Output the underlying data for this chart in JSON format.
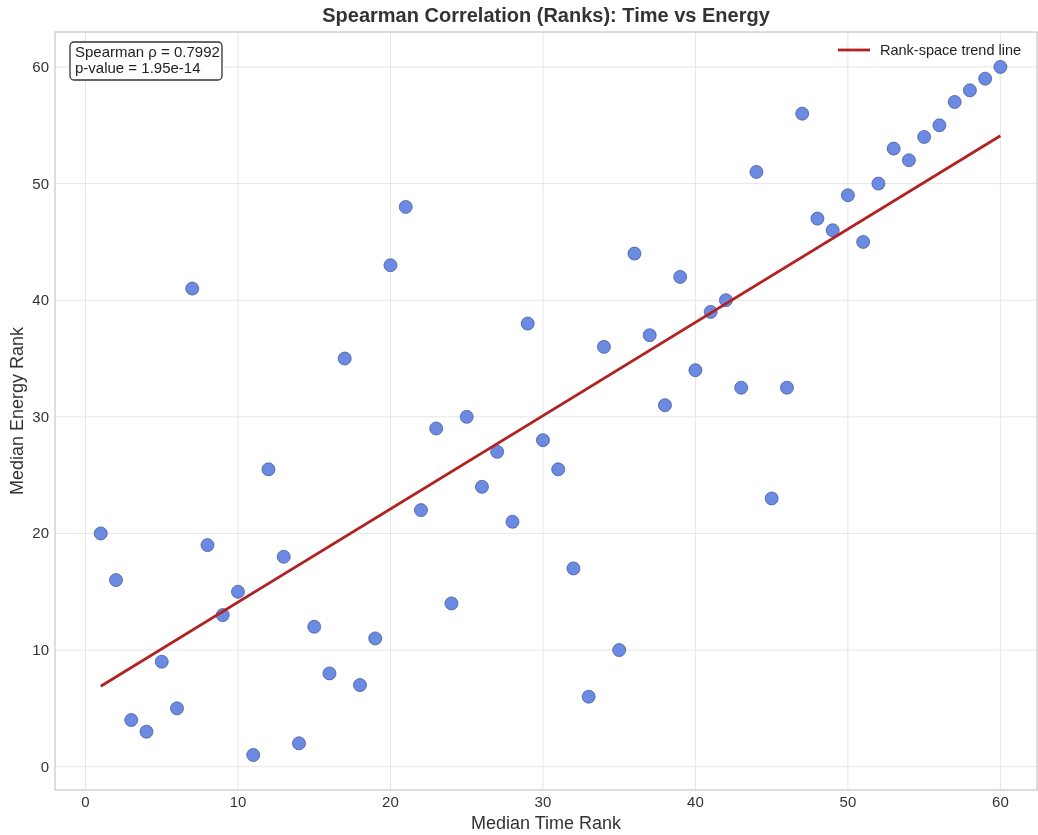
{
  "chart_data": {
    "type": "scatter",
    "title": "Spearman Correlation (Ranks): Time vs Energy",
    "xlabel": "Median Time Rank",
    "ylabel": "Median Energy Rank",
    "annotations": [
      "Spearman ρ = 0.7992\np-value = 1.95e-14"
    ],
    "xlim": [
      -2,
      62.4
    ],
    "ylim": [
      -2,
      63
    ],
    "xticks": [
      0,
      10,
      20,
      30,
      40,
      50,
      60
    ],
    "yticks": [
      0,
      10,
      20,
      30,
      40,
      50,
      60
    ],
    "grid": true,
    "legend": "top right",
    "series": [
      {
        "marker": "circle",
        "color": "#6b8ae2",
        "x": [
          1,
          2,
          3,
          4,
          5,
          6,
          7,
          8,
          9,
          10,
          11,
          12,
          13,
          14,
          15,
          16,
          17,
          18,
          19,
          20,
          21,
          22,
          23,
          24,
          25,
          26,
          27,
          28,
          29,
          30,
          31,
          32,
          33,
          34,
          35,
          36,
          37,
          38,
          39,
          40,
          41,
          42,
          43,
          44,
          45,
          46,
          47,
          48,
          49,
          50,
          51,
          52,
          53,
          54,
          55,
          56,
          57,
          58,
          59,
          60
        ],
        "values": [
          20,
          16,
          4,
          3,
          9,
          5,
          41,
          19,
          13,
          15,
          1,
          25.5,
          18,
          2,
          12,
          8,
          35,
          7,
          11,
          43,
          48,
          22,
          29,
          14,
          30,
          24,
          27,
          21,
          38,
          28,
          25.5,
          17,
          6,
          36,
          10,
          44,
          37,
          31,
          42,
          34,
          39,
          40,
          32.5,
          51,
          23,
          32.5,
          56,
          47,
          46,
          49,
          45,
          50,
          53,
          52,
          54,
          55,
          57,
          58,
          59,
          60
        ]
      },
      {
        "type": "line",
        "marker": "none",
        "name": "Rank-space trend line",
        "color": "#b22222",
        "line_style": "solid",
        "x": [
          1,
          60
        ],
        "values": [
          6.9,
          54.1
        ]
      }
    ]
  }
}
